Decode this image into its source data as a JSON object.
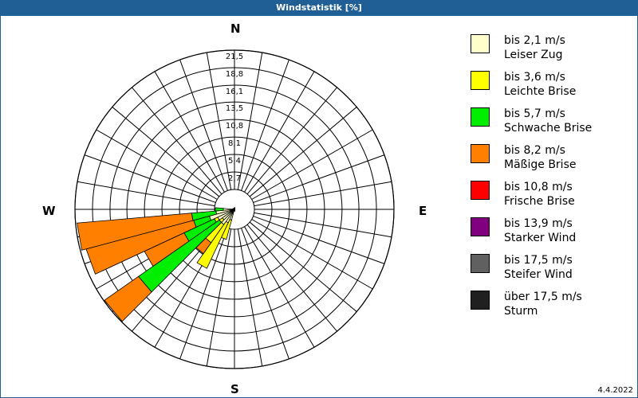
{
  "title": "Windstatistik [%]",
  "date": "4.4.2022",
  "compass": {
    "n": "N",
    "e": "E",
    "s": "S",
    "w": "W"
  },
  "ring_labels": [
    "2,7",
    "5,4",
    "8,1",
    "10,8",
    "13,5",
    "16,1",
    "18,8",
    "21,5"
  ],
  "legend": [
    {
      "line1": "bis 2,1 m/s",
      "line2": "Leiser Zug",
      "color": "#ffffcc"
    },
    {
      "line1": "bis 3,6 m/s",
      "line2": "Leichte Brise",
      "color": "#ffff00"
    },
    {
      "line1": "bis 5,7 m/s",
      "line2": "Schwache Brise",
      "color": "#00ee00"
    },
    {
      "line1": "bis 8,2 m/s",
      "line2": "Mäßige Brise",
      "color": "#ff8000"
    },
    {
      "line1": "bis 10,8 m/s",
      "line2": "Frische Brise",
      "color": "#ff0000"
    },
    {
      "line1": "bis 13,9 m/s",
      "line2": "Starker Wind",
      "color": "#800080"
    },
    {
      "line1": "bis 17,5 m/s",
      "line2": "Steifer Wind",
      "color": "#606060"
    },
    {
      "line1": "über 17,5 m/s",
      "line2": "Sturm",
      "color": "#202020"
    }
  ],
  "chart_data": {
    "type": "wind-rose",
    "title": "Windstatistik [%]",
    "radial_max": 21.5,
    "radial_ticks": [
      2.7,
      5.4,
      8.1,
      10.8,
      13.5,
      16.1,
      18.8,
      21.5
    ],
    "sector_width_deg": 10,
    "series_names": [
      "bis 2,1 m/s",
      "bis 3,6 m/s",
      "bis 5,7 m/s",
      "bis 8,2 m/s",
      "bis 10,8 m/s",
      "bis 13,9 m/s",
      "bis 17,5 m/s",
      "über 17,5 m/s"
    ],
    "sectors": [
      {
        "direction_deg": 200,
        "cumulative": [
          1.5,
          4.2,
          4.2,
          4.2
        ]
      },
      {
        "direction_deg": 210,
        "cumulative": [
          2.0,
          8.8,
          8.8,
          8.8
        ]
      },
      {
        "direction_deg": 220,
        "cumulative": [
          2.5,
          5.5,
          5.5,
          7.3
        ]
      },
      {
        "direction_deg": 230,
        "cumulative": [
          2.0,
          2.5,
          15.8,
          21.4
        ]
      },
      {
        "direction_deg": 240,
        "cumulative": [
          2.5,
          3.0,
          7.5,
          13.4
        ]
      },
      {
        "direction_deg": 250,
        "cumulative": [
          3.5,
          3.5,
          5.7,
          20.7
        ]
      },
      {
        "direction_deg": 260,
        "cumulative": [
          2.5,
          2.5,
          5.8,
          21.3
        ]
      },
      {
        "direction_deg": 270,
        "cumulative": [
          1.5,
          1.5,
          2.6,
          2.6
        ]
      }
    ]
  }
}
